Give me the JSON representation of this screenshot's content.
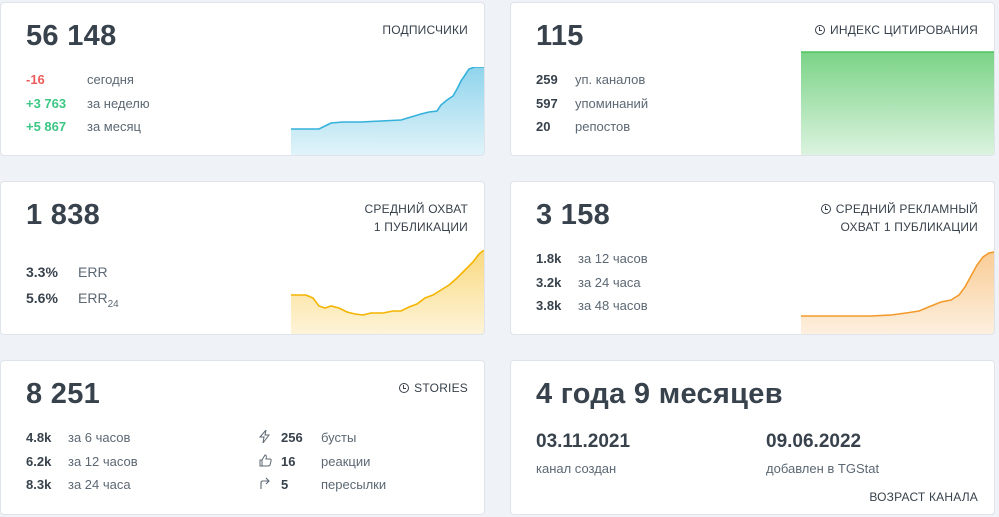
{
  "subscribers": {
    "value": "56 148",
    "label": "ПОДПИСЧИКИ",
    "rows": [
      {
        "v": "-16",
        "t": "сегодня"
      },
      {
        "v": "+3 763",
        "t": "за неделю"
      },
      {
        "v": "+5 867",
        "t": "за месяц"
      }
    ]
  },
  "citation": {
    "value": "115",
    "label": "ИНДЕКС ЦИТИРОВАНИЯ",
    "rows": [
      {
        "v": "259",
        "t": "уп. каналов"
      },
      {
        "v": "597",
        "t": "упоминаний"
      },
      {
        "v": "20",
        "t": "репостов"
      }
    ]
  },
  "reach": {
    "value": "1 838",
    "label_line1": "СРЕДНИЙ ОХВАТ",
    "label_line2": "1 ПУБЛИКАЦИИ",
    "rows": [
      {
        "v": "3.3%",
        "t": "ERR",
        "sub": ""
      },
      {
        "v": "5.6%",
        "t": "ERR",
        "sub": "24"
      }
    ]
  },
  "ad_reach": {
    "value": "3 158",
    "label_line1": "СРЕДНИЙ РЕКЛАМНЫЙ",
    "label_line2": "ОХВАТ 1 ПУБЛИКАЦИИ",
    "rows": [
      {
        "v": "1.8k",
        "t": "за 12 часов"
      },
      {
        "v": "3.2k",
        "t": "за 24 часа"
      },
      {
        "v": "3.8k",
        "t": "за 48 часов"
      }
    ]
  },
  "stories": {
    "value": "8 251",
    "label": "STORIES",
    "left_rows": [
      {
        "v": "4.8k",
        "t": "за 6 часов"
      },
      {
        "v": "6.2k",
        "t": "за 12 часов"
      },
      {
        "v": "8.3k",
        "t": "за 24 часа"
      }
    ],
    "right_rows": [
      {
        "icon": "lightning-icon",
        "v": "256",
        "t": "бусты"
      },
      {
        "icon": "thumbs-up-icon",
        "v": "16",
        "t": "реакции"
      },
      {
        "icon": "share-arrow-icon",
        "v": "5",
        "t": "пересылки"
      }
    ]
  },
  "age": {
    "value": "4 года 9 месяцев",
    "created_date": "03.11.2021",
    "created_label": "канал создан",
    "added_date": "09.06.2022",
    "added_label": "добавлен в TGStat",
    "label": "ВОЗРАСТ КАНАЛА"
  },
  "colors": {
    "blue": "#35b1dc",
    "green": "#4fc45f",
    "yellow": "#f4b400",
    "orange": "#f39a2c",
    "negative": "#ee5b5b",
    "positive": "#3cc785"
  }
}
